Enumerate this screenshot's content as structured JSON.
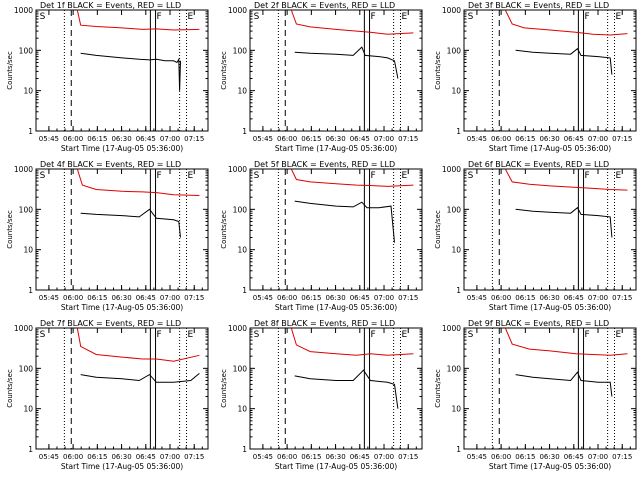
{
  "chart_data": [
    {
      "type": "line",
      "title": "Det 1f BLACK = Events, RED = LLD",
      "xlabel": "Start Time (17-Aug-05 05:36:00)",
      "ylabel": "Counts/sec",
      "yscale": "log",
      "ylim": [
        1,
        1000
      ],
      "yticks": [
        "1",
        "10",
        "100",
        "1000"
      ],
      "xticks": [
        "05:45",
        "06:00",
        "06:15",
        "06:30",
        "06:45",
        "07:00",
        "07:15"
      ],
      "markers": [
        "S",
        "F",
        "E"
      ],
      "series": [
        {
          "color": "#e00000",
          "points": [
            [
              0.24,
              1000
            ],
            [
              0.26,
              420
            ],
            [
              0.35,
              390
            ],
            [
              0.5,
              360
            ],
            [
              0.62,
              330
            ],
            [
              0.7,
              340
            ],
            [
              0.8,
              320
            ],
            [
              0.95,
              330
            ]
          ]
        },
        {
          "color": "#000000",
          "points": [
            [
              0.26,
              85
            ],
            [
              0.35,
              75
            ],
            [
              0.5,
              65
            ],
            [
              0.6,
              60
            ],
            [
              0.66,
              58
            ],
            [
              0.7,
              60
            ],
            [
              0.75,
              55
            ],
            [
              0.8,
              55
            ],
            [
              0.82,
              50
            ],
            [
              0.83,
              60
            ],
            [
              0.835,
              10
            ],
            [
              0.84,
              55
            ]
          ]
        }
      ]
    },
    {
      "type": "line",
      "title": "Det 2f BLACK = Events, RED = LLD",
      "xlabel": "Start Time (17-Aug-05 05:36:00)",
      "ylabel": "Counts/sec",
      "yscale": "log",
      "ylim": [
        1,
        1000
      ],
      "yticks": [
        "1",
        "10",
        "100",
        "1000"
      ],
      "xticks": [
        "05:45",
        "06:00",
        "06:15",
        "06:30",
        "06:45",
        "07:00",
        "07:15"
      ],
      "markers": [
        "S",
        "F",
        "E"
      ],
      "series": [
        {
          "color": "#e00000",
          "points": [
            [
              0.24,
              1000
            ],
            [
              0.27,
              450
            ],
            [
              0.35,
              380
            ],
            [
              0.5,
              330
            ],
            [
              0.62,
              300
            ],
            [
              0.7,
              280
            ],
            [
              0.8,
              250
            ],
            [
              0.95,
              270
            ]
          ]
        },
        {
          "color": "#000000",
          "points": [
            [
              0.26,
              90
            ],
            [
              0.35,
              85
            ],
            [
              0.5,
              80
            ],
            [
              0.6,
              75
            ],
            [
              0.65,
              120
            ],
            [
              0.67,
              75
            ],
            [
              0.75,
              70
            ],
            [
              0.8,
              65
            ],
            [
              0.84,
              55
            ],
            [
              0.86,
              20
            ]
          ]
        }
      ]
    },
    {
      "type": "line",
      "title": "Det 3f BLACK = Events, RED = LLD",
      "xlabel": "Start Time (17-Aug-05 05:36:00)",
      "ylabel": "Counts/sec",
      "yscale": "log",
      "ylim": [
        1,
        1000
      ],
      "yticks": [
        "1",
        "10",
        "100",
        "1000"
      ],
      "xticks": [
        "05:45",
        "06:00",
        "06:15",
        "06:30",
        "06:45",
        "07:00",
        "07:15"
      ],
      "markers": [
        "S",
        "F",
        "E"
      ],
      "series": [
        {
          "color": "#e00000",
          "points": [
            [
              0.24,
              1000
            ],
            [
              0.28,
              450
            ],
            [
              0.35,
              360
            ],
            [
              0.5,
              320
            ],
            [
              0.65,
              280
            ],
            [
              0.75,
              250
            ],
            [
              0.85,
              240
            ],
            [
              0.95,
              260
            ]
          ]
        },
        {
          "color": "#000000",
          "points": [
            [
              0.3,
              100
            ],
            [
              0.4,
              90
            ],
            [
              0.5,
              85
            ],
            [
              0.62,
              80
            ],
            [
              0.66,
              110
            ],
            [
              0.68,
              75
            ],
            [
              0.78,
              70
            ],
            [
              0.85,
              65
            ],
            [
              0.86,
              25
            ]
          ]
        }
      ]
    },
    {
      "type": "line",
      "title": "Det 4f BLACK = Events, RED = LLD",
      "xlabel": "Start Time (17-Aug-05 05:36:00)",
      "ylabel": "Counts/sec",
      "yscale": "log",
      "ylim": [
        1,
        1000
      ],
      "yticks": [
        "1",
        "10",
        "100",
        "1000"
      ],
      "xticks": [
        "05:45",
        "06:00",
        "06:15",
        "06:30",
        "06:45",
        "07:00",
        "07:15"
      ],
      "markers": [
        "S",
        "F",
        "E"
      ],
      "series": [
        {
          "color": "#e00000",
          "points": [
            [
              0.24,
              1000
            ],
            [
              0.27,
              400
            ],
            [
              0.35,
              310
            ],
            [
              0.5,
              280
            ],
            [
              0.62,
              270
            ],
            [
              0.7,
              260
            ],
            [
              0.8,
              230
            ],
            [
              0.95,
              220
            ]
          ]
        },
        {
          "color": "#000000",
          "points": [
            [
              0.26,
              80
            ],
            [
              0.35,
              75
            ],
            [
              0.5,
              70
            ],
            [
              0.6,
              65
            ],
            [
              0.66,
              100
            ],
            [
              0.7,
              60
            ],
            [
              0.8,
              55
            ],
            [
              0.83,
              50
            ],
            [
              0.84,
              20
            ]
          ]
        }
      ]
    },
    {
      "type": "line",
      "title": "Det 5f BLACK = Events, RED = LLD",
      "xlabel": "Start Time (17-Aug-05 05:36:00)",
      "ylabel": "Counts/sec",
      "yscale": "log",
      "ylim": [
        1,
        1000
      ],
      "yticks": [
        "1",
        "10",
        "100",
        "1000"
      ],
      "xticks": [
        "05:45",
        "06:00",
        "06:15",
        "06:30",
        "06:45",
        "07:00",
        "07:15"
      ],
      "markers": [
        "S",
        "F",
        "E"
      ],
      "series": [
        {
          "color": "#e00000",
          "points": [
            [
              0.24,
              1000
            ],
            [
              0.27,
              550
            ],
            [
              0.35,
              480
            ],
            [
              0.5,
              430
            ],
            [
              0.62,
              400
            ],
            [
              0.7,
              390
            ],
            [
              0.8,
              370
            ],
            [
              0.95,
              400
            ]
          ]
        },
        {
          "color": "#000000",
          "points": [
            [
              0.26,
              160
            ],
            [
              0.35,
              140
            ],
            [
              0.5,
              120
            ],
            [
              0.6,
              115
            ],
            [
              0.65,
              150
            ],
            [
              0.68,
              110
            ],
            [
              0.75,
              110
            ],
            [
              0.82,
              120
            ],
            [
              0.84,
              15
            ]
          ]
        }
      ]
    },
    {
      "type": "line",
      "title": "Det 6f BLACK = Events, RED = LLD",
      "xlabel": "Start Time (17-Aug-05 05:36:00)",
      "ylabel": "Counts/sec",
      "yscale": "log",
      "ylim": [
        1,
        1000
      ],
      "yticks": [
        "1",
        "10",
        "100",
        "1000"
      ],
      "xticks": [
        "05:45",
        "06:00",
        "06:15",
        "06:30",
        "06:45",
        "07:00",
        "07:15"
      ],
      "markers": [
        "S",
        "F",
        "E"
      ],
      "series": [
        {
          "color": "#e00000",
          "points": [
            [
              0.24,
              1000
            ],
            [
              0.28,
              480
            ],
            [
              0.38,
              420
            ],
            [
              0.5,
              380
            ],
            [
              0.65,
              350
            ],
            [
              0.75,
              330
            ],
            [
              0.85,
              310
            ],
            [
              0.95,
              300
            ]
          ]
        },
        {
          "color": "#000000",
          "points": [
            [
              0.3,
              100
            ],
            [
              0.4,
              90
            ],
            [
              0.5,
              85
            ],
            [
              0.62,
              80
            ],
            [
              0.66,
              110
            ],
            [
              0.68,
              75
            ],
            [
              0.78,
              70
            ],
            [
              0.85,
              65
            ],
            [
              0.86,
              20
            ]
          ]
        }
      ]
    },
    {
      "type": "line",
      "title": "Det 7f BLACK = Events, RED = LLD",
      "xlabel": "Start Time (17-Aug-05 05:36:00)",
      "ylabel": "Counts/sec",
      "yscale": "log",
      "ylim": [
        1,
        1000
      ],
      "yticks": [
        "1",
        "10",
        "100",
        "1000"
      ],
      "xticks": [
        "05:45",
        "06:00",
        "06:15",
        "06:30",
        "06:45",
        "07:00",
        "07:15"
      ],
      "markers": [
        "S",
        "F",
        "E"
      ],
      "series": [
        {
          "color": "#e00000",
          "points": [
            [
              0.24,
              1000
            ],
            [
              0.26,
              350
            ],
            [
              0.35,
              220
            ],
            [
              0.5,
              190
            ],
            [
              0.62,
              170
            ],
            [
              0.7,
              170
            ],
            [
              0.8,
              150
            ],
            [
              0.95,
              210
            ]
          ]
        },
        {
          "color": "#000000",
          "points": [
            [
              0.26,
              70
            ],
            [
              0.35,
              60
            ],
            [
              0.5,
              55
            ],
            [
              0.6,
              50
            ],
            [
              0.66,
              70
            ],
            [
              0.7,
              45
            ],
            [
              0.8,
              45
            ],
            [
              0.9,
              50
            ],
            [
              0.95,
              75
            ]
          ]
        }
      ]
    },
    {
      "type": "line",
      "title": "Det 8f BLACK = Events, RED = LLD",
      "xlabel": "Start Time (17-Aug-05 05:36:00)",
      "ylabel": "Counts/sec",
      "yscale": "log",
      "ylim": [
        1,
        1000
      ],
      "yticks": [
        "1",
        "10",
        "100",
        "1000"
      ],
      "xticks": [
        "05:45",
        "06:00",
        "06:15",
        "06:30",
        "06:45",
        "07:00",
        "07:15"
      ],
      "markers": [
        "S",
        "F",
        "E"
      ],
      "series": [
        {
          "color": "#e00000",
          "points": [
            [
              0.24,
              1000
            ],
            [
              0.27,
              380
            ],
            [
              0.35,
              260
            ],
            [
              0.5,
              230
            ],
            [
              0.62,
              210
            ],
            [
              0.7,
              230
            ],
            [
              0.8,
              210
            ],
            [
              0.95,
              230
            ]
          ]
        },
        {
          "color": "#000000",
          "points": [
            [
              0.26,
              65
            ],
            [
              0.35,
              55
            ],
            [
              0.5,
              50
            ],
            [
              0.6,
              50
            ],
            [
              0.66,
              90
            ],
            [
              0.7,
              50
            ],
            [
              0.8,
              45
            ],
            [
              0.84,
              40
            ],
            [
              0.86,
              10
            ]
          ]
        }
      ]
    },
    {
      "type": "line",
      "title": "Det 9f BLACK = Events, RED = LLD",
      "xlabel": "Start Time (17-Aug-05 05:36:00)",
      "ylabel": "Counts/sec",
      "yscale": "log",
      "ylim": [
        1,
        1000
      ],
      "yticks": [
        "1",
        "10",
        "100",
        "1000"
      ],
      "xticks": [
        "05:45",
        "06:00",
        "06:15",
        "06:30",
        "06:45",
        "07:00",
        "07:15"
      ],
      "markers": [
        "S",
        "F",
        "E"
      ],
      "series": [
        {
          "color": "#e00000",
          "points": [
            [
              0.24,
              1000
            ],
            [
              0.28,
              400
            ],
            [
              0.38,
              300
            ],
            [
              0.5,
              270
            ],
            [
              0.65,
              230
            ],
            [
              0.75,
              220
            ],
            [
              0.85,
              210
            ],
            [
              0.95,
              230
            ]
          ]
        },
        {
          "color": "#000000",
          "points": [
            [
              0.3,
              70
            ],
            [
              0.4,
              60
            ],
            [
              0.5,
              55
            ],
            [
              0.62,
              50
            ],
            [
              0.66,
              80
            ],
            [
              0.68,
              50
            ],
            [
              0.78,
              45
            ],
            [
              0.85,
              45
            ],
            [
              0.86,
              20
            ]
          ]
        }
      ]
    }
  ]
}
